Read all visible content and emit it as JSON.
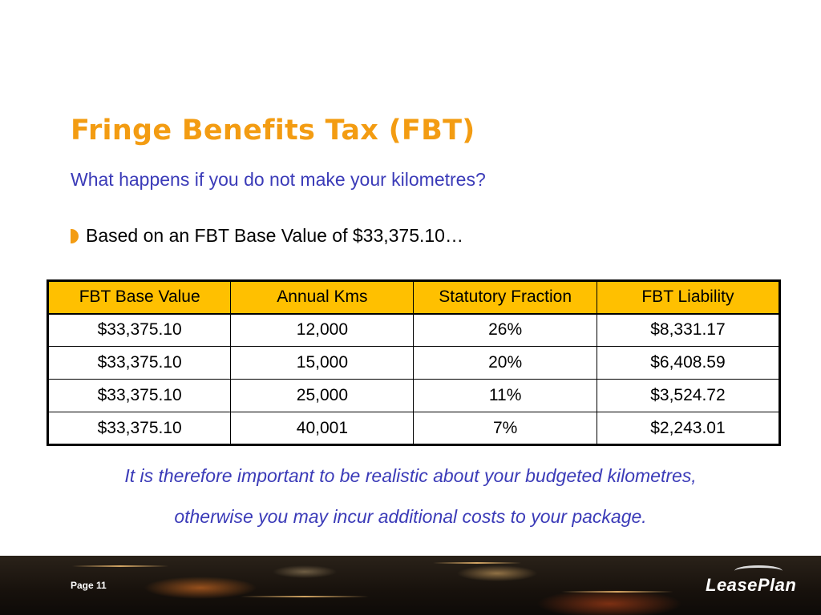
{
  "slide": {
    "title": "Fringe Benefits Tax (FBT)",
    "subtitle": "What happens if you do not make your kilometres?",
    "bullet": "Based on an FBT Base Value of $33,375.10…"
  },
  "table": {
    "headers": [
      "FBT Base Value",
      "Annual Kms",
      "Statutory Fraction",
      "FBT Liability"
    ],
    "rows": [
      [
        "$33,375.10",
        "12,000",
        "26%",
        "$8,331.17"
      ],
      [
        "$33,375.10",
        "15,000",
        "20%",
        "$6,408.59"
      ],
      [
        "$33,375.10",
        "25,000",
        "11%",
        "$3,524.72"
      ],
      [
        "$33,375.10",
        "40,001",
        "7%",
        "$2,243.01"
      ]
    ]
  },
  "note": {
    "line1": "It is therefore important to be realistic about your budgeted kilometres,",
    "line2": "otherwise you may incur additional costs to your package."
  },
  "footer": {
    "page_label": "Page 11",
    "logo_text": "LeasePlan"
  },
  "colors": {
    "title": "#f39c12",
    "subtitle": "#3b3bb8",
    "header_fill": "#ffc000"
  }
}
